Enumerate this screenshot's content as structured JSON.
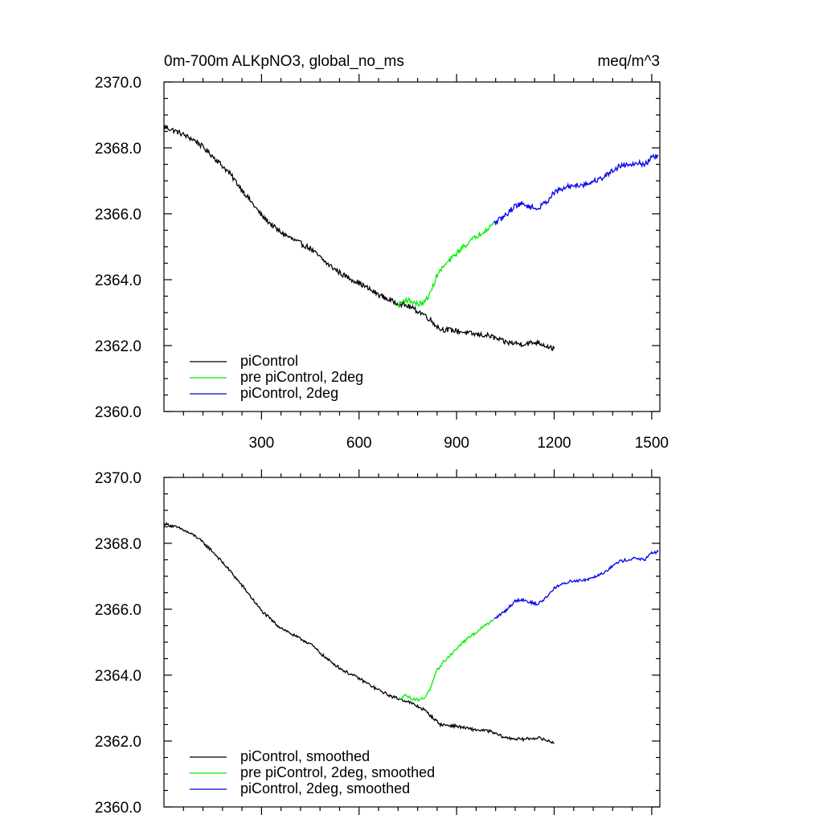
{
  "chart_data": [
    {
      "type": "line",
      "title": "0m-700m ALKpNO3, global_no_ms",
      "units": "meq/m^3",
      "xlabel": "",
      "ylabel": "",
      "xlim": [
        0,
        1525
      ],
      "ylim": [
        2360,
        2370
      ],
      "xticks": [
        300,
        600,
        900,
        1200,
        1500
      ],
      "xtick_labels": [
        "300",
        "600",
        "900",
        "1200",
        "1500"
      ],
      "yticks": [
        2360,
        2362,
        2364,
        2366,
        2368,
        2370
      ],
      "ytick_labels": [
        "2360.0",
        "2362.0",
        "2364.0",
        "2366.0",
        "2368.0",
        "2370.0"
      ],
      "legend_position": "bottom-left",
      "series": [
        {
          "name": "piControl",
          "color": "#000000",
          "x": [
            0,
            50,
            100,
            150,
            200,
            250,
            300,
            350,
            400,
            450,
            500,
            550,
            600,
            650,
            700,
            750,
            800,
            850,
            900,
            950,
            1000,
            1050,
            1100,
            1150,
            1200
          ],
          "y": [
            2368.65,
            2368.45,
            2368.2,
            2367.75,
            2367.25,
            2366.6,
            2365.95,
            2365.5,
            2365.2,
            2364.95,
            2364.5,
            2364.15,
            2363.9,
            2363.6,
            2363.35,
            2363.2,
            2362.95,
            2362.5,
            2362.45,
            2362.35,
            2362.3,
            2362.1,
            2362.05,
            2362.1,
            2361.9
          ]
        },
        {
          "name": "pre piControl, 2deg",
          "color": "#00ee00",
          "x": [
            720,
            740,
            760,
            780,
            800,
            820,
            840,
            860,
            880,
            900,
            920,
            940,
            960,
            980,
            1000,
            1015
          ],
          "y": [
            2363.2,
            2363.4,
            2363.35,
            2363.25,
            2363.3,
            2363.6,
            2364.15,
            2364.4,
            2364.6,
            2364.8,
            2365.0,
            2365.15,
            2365.3,
            2365.45,
            2365.6,
            2365.7
          ]
        },
        {
          "name": "piControl, 2deg",
          "color": "#0000ee",
          "x": [
            1015,
            1050,
            1080,
            1100,
            1130,
            1150,
            1180,
            1200,
            1250,
            1300,
            1350,
            1400,
            1450,
            1480,
            1500,
            1520
          ],
          "y": [
            2365.7,
            2365.95,
            2366.25,
            2366.3,
            2366.2,
            2366.15,
            2366.4,
            2366.65,
            2366.85,
            2366.9,
            2367.1,
            2367.45,
            2367.55,
            2367.5,
            2367.7,
            2367.75
          ]
        }
      ]
    },
    {
      "type": "line",
      "title": "",
      "xlabel": "",
      "ylabel": "",
      "xlim": [
        0,
        1525
      ],
      "ylim": [
        2360,
        2370
      ],
      "xticks": [
        300,
        600,
        900,
        1200,
        1500
      ],
      "xtick_labels": [],
      "yticks": [
        2360,
        2362,
        2364,
        2366,
        2368,
        2370
      ],
      "ytick_labels": [
        "2360.0",
        "2362.0",
        "2364.0",
        "2366.0",
        "2368.0",
        "2370.0"
      ],
      "legend_position": "bottom-left",
      "series": [
        {
          "name": "piControl, smoothed",
          "color": "#000000",
          "x": [
            0,
            50,
            100,
            150,
            200,
            250,
            300,
            350,
            400,
            450,
            500,
            550,
            600,
            650,
            700,
            750,
            800,
            850,
            900,
            950,
            1000,
            1050,
            1100,
            1150,
            1200
          ],
          "y": [
            2368.6,
            2368.45,
            2368.2,
            2367.75,
            2367.2,
            2366.6,
            2365.95,
            2365.5,
            2365.2,
            2364.95,
            2364.5,
            2364.15,
            2363.9,
            2363.6,
            2363.35,
            2363.2,
            2362.95,
            2362.5,
            2362.45,
            2362.35,
            2362.3,
            2362.1,
            2362.05,
            2362.1,
            2361.95
          ]
        },
        {
          "name": "pre piControl, 2deg, smoothed",
          "color": "#00ee00",
          "x": [
            720,
            740,
            760,
            780,
            800,
            820,
            840,
            860,
            880,
            900,
            920,
            940,
            960,
            980,
            1000,
            1015
          ],
          "y": [
            2363.25,
            2363.4,
            2363.3,
            2363.25,
            2363.3,
            2363.6,
            2364.15,
            2364.4,
            2364.6,
            2364.8,
            2365.0,
            2365.15,
            2365.3,
            2365.45,
            2365.6,
            2365.7
          ]
        },
        {
          "name": "piControl, 2deg, smoothed",
          "color": "#0000ee",
          "x": [
            1015,
            1050,
            1080,
            1100,
            1130,
            1150,
            1180,
            1200,
            1250,
            1300,
            1350,
            1400,
            1450,
            1480,
            1500,
            1520
          ],
          "y": [
            2365.7,
            2365.95,
            2366.25,
            2366.3,
            2366.2,
            2366.15,
            2366.4,
            2366.65,
            2366.85,
            2366.9,
            2367.1,
            2367.45,
            2367.55,
            2367.5,
            2367.7,
            2367.75
          ]
        }
      ]
    }
  ]
}
